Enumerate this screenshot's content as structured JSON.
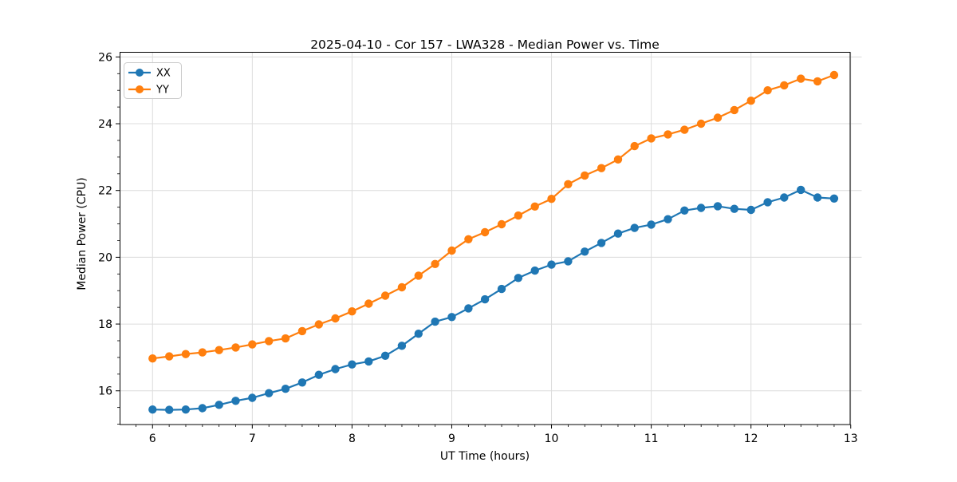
{
  "chart_data": {
    "type": "line",
    "title": "2025-04-10 - Cor 157 - LWA328 - Median Power vs. Time",
    "xlabel": "UT Time (hours)",
    "ylabel": "Median Power (CPU)",
    "xlim": [
      5.67,
      13.11
    ],
    "ylim": [
      14.99,
      26.14
    ],
    "xticks": [
      6,
      7,
      8,
      9,
      10,
      11,
      12,
      13
    ],
    "yticks": [
      16,
      18,
      20,
      22,
      24,
      26
    ],
    "x_minor_step": 0.16667,
    "y_minor_step": 0.5,
    "grid": true,
    "legend_position": "upper-left",
    "grid_color": "#dcdcdc",
    "x": [
      6.0,
      6.167,
      6.333,
      6.5,
      6.667,
      6.833,
      7.0,
      7.167,
      7.333,
      7.5,
      7.667,
      7.833,
      8.0,
      8.167,
      8.333,
      8.5,
      8.667,
      8.833,
      9.0,
      9.167,
      9.333,
      9.5,
      9.667,
      9.833,
      10.0,
      10.167,
      10.333,
      10.5,
      10.667,
      10.833,
      11.0,
      11.167,
      11.333,
      11.5,
      11.667,
      11.833,
      12.0,
      12.167,
      12.333,
      12.5,
      12.667,
      12.833
    ],
    "series": [
      {
        "name": "XX",
        "color": "#1f77b4",
        "values": [
          15.44,
          15.43,
          15.44,
          15.48,
          15.58,
          15.7,
          15.79,
          15.93,
          16.06,
          16.25,
          16.48,
          16.65,
          16.79,
          16.88,
          17.05,
          17.35,
          17.71,
          18.07,
          18.21,
          18.47,
          18.74,
          19.05,
          19.38,
          19.6,
          19.78,
          19.88,
          20.17,
          20.43,
          20.71,
          20.88,
          20.98,
          21.14,
          21.4,
          21.48,
          21.53,
          21.45,
          21.42,
          21.65,
          21.79,
          22.02,
          21.79,
          21.76
        ]
      },
      {
        "name": "YY",
        "color": "#ff7f0e",
        "values": [
          16.97,
          17.03,
          17.1,
          17.15,
          17.22,
          17.3,
          17.39,
          17.49,
          17.57,
          17.79,
          17.99,
          18.17,
          18.38,
          18.61,
          18.85,
          19.1,
          19.45,
          19.8,
          20.2,
          20.54,
          20.75,
          20.99,
          21.25,
          21.52,
          21.75,
          22.19,
          22.45,
          22.67,
          22.93,
          23.33,
          23.56,
          23.68,
          23.82,
          24.0,
          24.18,
          24.41,
          24.69,
          25.0,
          25.15,
          25.35,
          25.27,
          25.46
        ]
      }
    ],
    "legend": {
      "items": [
        {
          "label": "XX"
        },
        {
          "label": "YY"
        }
      ]
    }
  }
}
